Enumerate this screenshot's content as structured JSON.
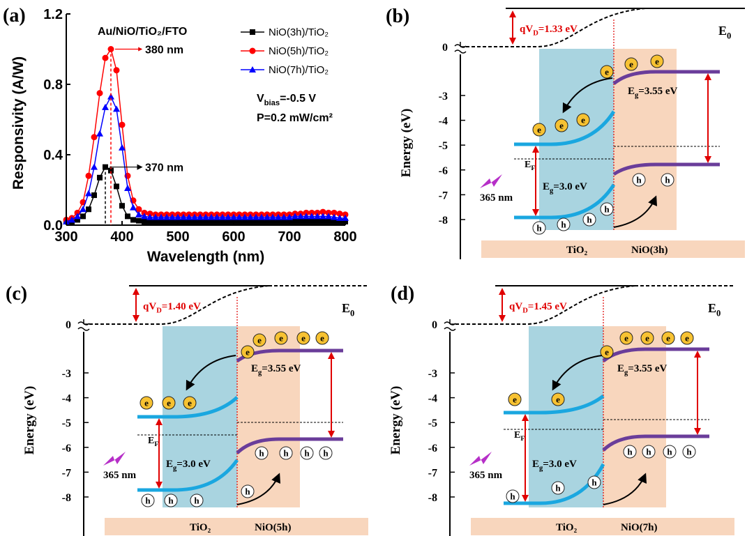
{
  "chart_data": {
    "type": "line",
    "panel_label": "(a)",
    "title": "Au/NiO/TiO₂/FTO",
    "xlabel": "Wavelength (nm)",
    "ylabel": "Responsivity (A/W)",
    "xlim": [
      300,
      800
    ],
    "xticks": [
      300,
      400,
      500,
      600,
      700,
      800
    ],
    "ylim": [
      0,
      1.2
    ],
    "yticks": [
      {
        "value": 0,
        "label": "0.0"
      },
      0.4,
      0.8,
      1.2
    ],
    "legend": "upper right",
    "x": [
      300,
      310,
      320,
      330,
      340,
      350,
      360,
      370,
      380,
      390,
      400,
      410,
      420,
      430,
      440,
      450,
      460,
      470,
      480,
      490,
      500,
      510,
      520,
      530,
      540,
      550,
      560,
      570,
      580,
      590,
      600,
      610,
      620,
      630,
      640,
      650,
      660,
      670,
      680,
      690,
      700,
      710,
      720,
      730,
      740,
      750,
      760,
      770,
      780,
      790,
      800
    ],
    "series": [
      {
        "name": "NiO(3h)/TiO₂",
        "color": "#000000",
        "marker": "square",
        "values": [
          0.02,
          0.02,
          0.03,
          0.05,
          0.09,
          0.17,
          0.27,
          0.33,
          0.31,
          0.22,
          0.11,
          0.05,
          0.03,
          0.025,
          0.02,
          0.02,
          0.02,
          0.02,
          0.02,
          0.02,
          0.02,
          0.02,
          0.02,
          0.02,
          0.02,
          0.02,
          0.02,
          0.02,
          0.02,
          0.02,
          0.02,
          0.02,
          0.02,
          0.02,
          0.02,
          0.02,
          0.02,
          0.02,
          0.02,
          0.02,
          0.02,
          0.02,
          0.02,
          0.02,
          0.02,
          0.02,
          0.02,
          0.02,
          0.02,
          0.02,
          0.02
        ]
      },
      {
        "name": "NiO(5h)/TiO₂",
        "color": "#ff0000",
        "marker": "circle",
        "values": [
          0.03,
          0.04,
          0.07,
          0.13,
          0.28,
          0.5,
          0.75,
          0.95,
          1.0,
          0.88,
          0.57,
          0.28,
          0.14,
          0.09,
          0.07,
          0.065,
          0.06,
          0.06,
          0.06,
          0.06,
          0.06,
          0.06,
          0.06,
          0.06,
          0.06,
          0.06,
          0.06,
          0.06,
          0.06,
          0.06,
          0.06,
          0.06,
          0.06,
          0.06,
          0.06,
          0.06,
          0.06,
          0.06,
          0.06,
          0.06,
          0.06,
          0.065,
          0.065,
          0.07,
          0.07,
          0.07,
          0.075,
          0.07,
          0.07,
          0.065,
          0.06
        ]
      },
      {
        "name": "NiO(7h)/TiO₂",
        "color": "#0000ff",
        "marker": "triangle",
        "values": [
          0.02,
          0.03,
          0.05,
          0.09,
          0.18,
          0.33,
          0.52,
          0.67,
          0.73,
          0.66,
          0.44,
          0.21,
          0.1,
          0.06,
          0.05,
          0.045,
          0.045,
          0.045,
          0.045,
          0.045,
          0.045,
          0.045,
          0.045,
          0.045,
          0.045,
          0.045,
          0.045,
          0.045,
          0.045,
          0.045,
          0.045,
          0.045,
          0.045,
          0.045,
          0.045,
          0.045,
          0.045,
          0.045,
          0.045,
          0.045,
          0.045,
          0.05,
          0.05,
          0.05,
          0.05,
          0.05,
          0.05,
          0.05,
          0.045,
          0.04,
          0.04
        ]
      }
    ],
    "peak_labels": [
      {
        "label": "380 nm",
        "x": 380,
        "y": 1.0,
        "color": "#ff0000"
      },
      {
        "label": "370 nm",
        "x": 370,
        "y": 0.33,
        "color": "#000000"
      }
    ],
    "annotations": [
      {
        "main": "V",
        "sub": "bias",
        "rest": "=-0.5 V"
      },
      {
        "main": "P=0.2 mW/cm²"
      }
    ]
  },
  "diagrams": [
    {
      "panel_label": "(b)",
      "y_axis_label": "Energy (eV)",
      "yticks": [
        0,
        -3,
        -4,
        -5,
        -6,
        -7,
        -8
      ],
      "built_in_potential": {
        "main": "qV",
        "sub": "D",
        "rest": "=1.33 eV"
      },
      "vacuum_level": {
        "main": "E",
        "sub": "0"
      },
      "eg_nio": {
        "main": "E",
        "sub": "g",
        "rest": "=3.55 eV"
      },
      "eg_tio2": {
        "main": "E",
        "sub": "g",
        "rest": "=3.0 eV"
      },
      "fermi_level": {
        "main": "E",
        "sub": "F"
      },
      "light": "365 nm",
      "electron": "e",
      "hole": "h",
      "layers": [
        "TiO₂",
        "NiO(3h)"
      ]
    },
    {
      "panel_label": "(c)",
      "y_axis_label": "Energy (eV)",
      "yticks": [
        0,
        -3,
        -4,
        -5,
        -6,
        -7,
        -8
      ],
      "built_in_potential": {
        "main": "qV",
        "sub": "D",
        "rest": "=1.40 eV"
      },
      "vacuum_level": {
        "main": "E",
        "sub": "0"
      },
      "eg_nio": {
        "main": "E",
        "sub": "g",
        "rest": "=3.55 eV"
      },
      "eg_tio2": {
        "main": "E",
        "sub": "g",
        "rest": "=3.0 eV"
      },
      "fermi_level": {
        "main": "E",
        "sub": "F"
      },
      "light": "365 nm",
      "electron": "e",
      "hole": "h",
      "layers": [
        "TiO₂",
        "NiO(5h)"
      ]
    },
    {
      "panel_label": "(d)",
      "y_axis_label": "Energy (eV)",
      "yticks": [
        0,
        -3,
        -4,
        -5,
        -6,
        -7,
        -8
      ],
      "built_in_potential": {
        "main": "qV",
        "sub": "D",
        "rest": "=1.45 eV"
      },
      "vacuum_level": {
        "main": "E",
        "sub": "0"
      },
      "eg_nio": {
        "main": "E",
        "sub": "g",
        "rest": "=3.55 eV"
      },
      "eg_tio2": {
        "main": "E",
        "sub": "g",
        "rest": "=3.0 eV"
      },
      "fermi_level": {
        "main": "E",
        "sub": "F"
      },
      "light": "365 nm",
      "electron": "e",
      "hole": "h",
      "layers": [
        "TiO₂",
        "NiO(7h)"
      ]
    }
  ]
}
